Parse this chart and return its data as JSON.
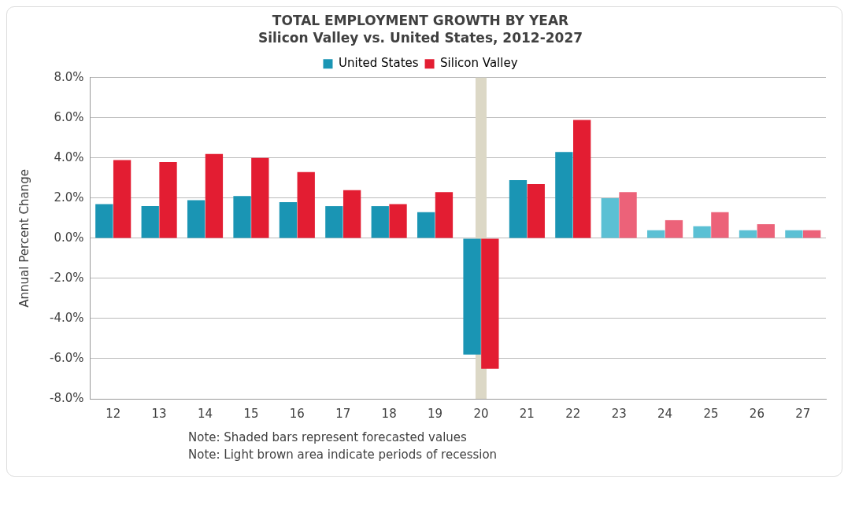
{
  "chart_data": {
    "type": "bar",
    "title": "TOTAL EMPLOYMENT GROWTH BY YEAR",
    "subtitle": "Silicon Valley vs. United States, 2012-2027",
    "ylabel": "Annual Percent Change",
    "categories": [
      "12",
      "13",
      "14",
      "15",
      "16",
      "17",
      "18",
      "19",
      "20",
      "21",
      "22",
      "23",
      "24",
      "25",
      "26",
      "27"
    ],
    "series": [
      {
        "name": "United States",
        "color": "#1a95b4",
        "colors": [
          "#1a95b4",
          "#1a95b4",
          "#1a95b4",
          "#1a95b4",
          "#1a95b4",
          "#1a95b4",
          "#1a95b4",
          "#1a95b4",
          "#1a95b4",
          "#1a95b4",
          "#1a95b4",
          "#5bc0d4",
          "#5bc0d4",
          "#5bc0d4",
          "#5bc0d4",
          "#5bc0d4"
        ],
        "values": [
          1.7,
          1.6,
          1.9,
          2.1,
          1.8,
          1.6,
          1.6,
          1.3,
          -5.8,
          2.9,
          4.3,
          2.0,
          0.4,
          0.6,
          0.4,
          0.4
        ]
      },
      {
        "name": "Silicon Valley",
        "color": "#e31d32",
        "colors": [
          "#e31d32",
          "#e31d32",
          "#e31d32",
          "#e31d32",
          "#e31d32",
          "#e31d32",
          "#e31d32",
          "#e31d32",
          "#e31d32",
          "#e31d32",
          "#e31d32",
          "#ec6279",
          "#ec6279",
          "#ec6279",
          "#ec6279",
          "#ec6279"
        ],
        "values": [
          3.9,
          3.8,
          4.2,
          4.0,
          3.3,
          2.4,
          1.7,
          2.3,
          -6.5,
          2.7,
          5.9,
          2.3,
          0.9,
          1.3,
          0.7,
          0.4
        ]
      }
    ],
    "ylim": [
      -8,
      8
    ],
    "yticks": [
      {
        "value": -8,
        "label": "-8.0%"
      },
      {
        "value": -6,
        "label": "-6.0%"
      },
      {
        "value": -4,
        "label": "-4.0%"
      },
      {
        "value": -2,
        "label": "-2.0%"
      },
      {
        "value": 0,
        "label": "0.0%"
      },
      {
        "value": 2,
        "label": "2.0%"
      },
      {
        "value": 4,
        "label": "4.0%"
      },
      {
        "value": 6,
        "label": "6.0%"
      },
      {
        "value": 8,
        "label": "8.0%"
      }
    ],
    "bands": [
      {
        "axis": "x",
        "from": "20",
        "to": "20",
        "color": "#dcd8c6"
      }
    ],
    "grid": "y",
    "legend": "top",
    "annotations": [
      "Note: Shaded bars represent forecasted values",
      "Note: Light brown area indicate periods of recession"
    ]
  }
}
